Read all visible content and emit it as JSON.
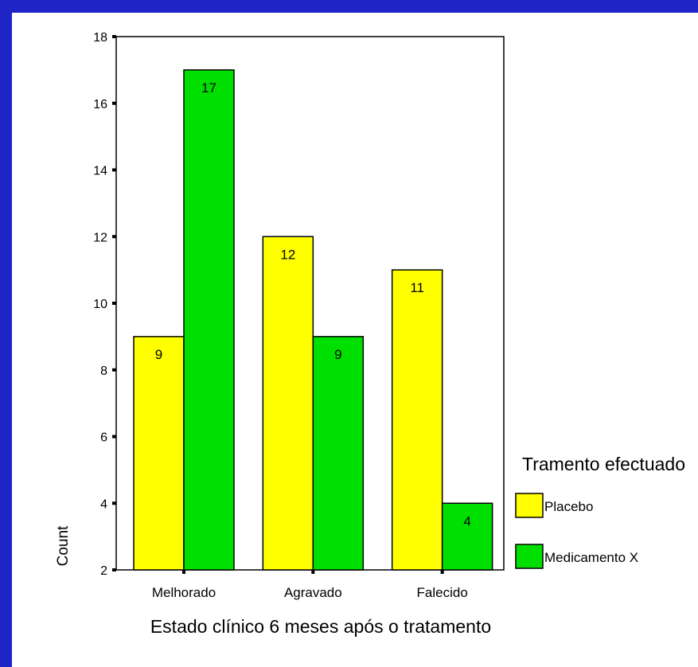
{
  "chart_data": {
    "type": "bar",
    "categories": [
      "Melhorado",
      "Agravado",
      "Falecido"
    ],
    "series": [
      {
        "name": "Placebo",
        "values": [
          9,
          12,
          11
        ],
        "color": "#ffff00"
      },
      {
        "name": "Medicamento X",
        "values": [
          17,
          9,
          4
        ],
        "color": "#00e000"
      }
    ],
    "data_labels": [
      [
        "9",
        "17"
      ],
      [
        "12",
        "9"
      ],
      [
        "11",
        "4"
      ]
    ],
    "xlabel": "Estado clínico 6 meses após o tratamento",
    "ylabel": "Count",
    "ylim": [
      2,
      18
    ],
    "yticks": [
      "2",
      "4",
      "6",
      "8",
      "10",
      "12",
      "14",
      "16",
      "18"
    ],
    "legend": {
      "title": "Tramento efectuado",
      "placement": "right"
    },
    "grid": false
  },
  "colors": {
    "frame": "#1f24c8",
    "background": "#ffffff"
  }
}
